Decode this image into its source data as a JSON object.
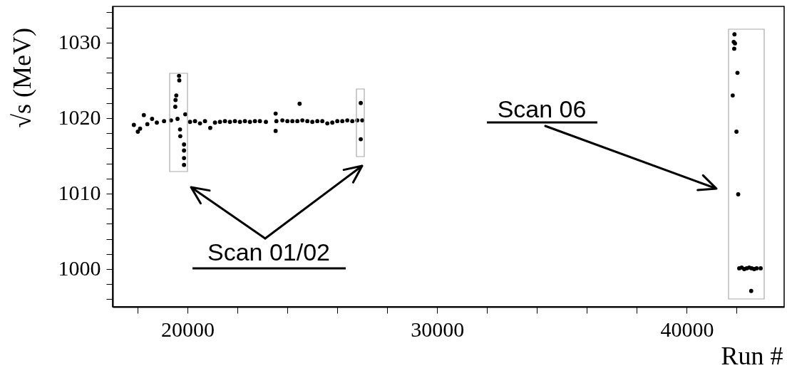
{
  "chart_data": {
    "type": "scatter",
    "xlabel": "Run #",
    "ylabel": "√s (MeV)",
    "x": [
      17850,
      18010,
      18100,
      18250,
      18390,
      18580,
      18770,
      19060,
      19340,
      19510,
      19520,
      19550,
      19660,
      19670,
      19700,
      19710,
      19860,
      19860,
      19860,
      19860,
      19600,
      19910,
      20100,
      20300,
      20500,
      20700,
      20910,
      21100,
      21300,
      21500,
      21700,
      21900,
      22100,
      22300,
      22500,
      22700,
      22900,
      23140,
      23530,
      23530,
      23560,
      23800,
      24000,
      24200,
      24490,
      24400,
      24600,
      24800,
      25000,
      25200,
      25400,
      25600,
      25800,
      26000,
      26200,
      26400,
      26600,
      26800,
      27000,
      26940,
      26940,
      41910,
      41930,
      41880,
      41900,
      42030,
      41840,
      41990,
      42060,
      42100,
      42200,
      42300,
      42400,
      42500,
      42600,
      42700,
      42800,
      42960,
      42580
    ],
    "values": [
      1019.1,
      1018.2,
      1018.6,
      1020.4,
      1019.2,
      1019.9,
      1019.4,
      1019.6,
      1019.7,
      1021.5,
      1022.4,
      1023.0,
      1025.6,
      1025.0,
      1018.5,
      1017.6,
      1016.5,
      1015.7,
      1014.7,
      1013.8,
      1019.9,
      1020.5,
      1019.5,
      1019.6,
      1019.3,
      1019.6,
      1018.7,
      1019.4,
      1019.5,
      1019.6,
      1019.5,
      1019.6,
      1019.5,
      1019.6,
      1019.5,
      1019.6,
      1019.6,
      1019.5,
      1020.6,
      1018.3,
      1019.6,
      1019.7,
      1019.6,
      1019.6,
      1021.9,
      1019.6,
      1019.7,
      1019.6,
      1019.5,
      1019.6,
      1019.6,
      1019.3,
      1019.4,
      1019.6,
      1019.6,
      1019.7,
      1019.6,
      1019.7,
      1019.7,
      1022.0,
      1017.2,
      1031.1,
      1029.9,
      1030.1,
      1029.2,
      1026.0,
      1023.0,
      1018.2,
      1009.9,
      1000.1,
      1000.2,
      1000.0,
      1000.1,
      1000.2,
      1000.1,
      1000.0,
      1000.1,
      1000.1,
      997.1
    ],
    "color": "#000000",
    "marker": "circle",
    "grid": false,
    "xlim": [
      17000,
      43900
    ],
    "xticks": [
      {
        "value": 18000,
        "label": null
      },
      20000,
      {
        "value": 22000,
        "label": null
      },
      {
        "value": 24000,
        "label": null
      },
      {
        "value": 26000,
        "label": null
      },
      {
        "value": 28000,
        "label": null
      },
      30000,
      {
        "value": 32000,
        "label": null
      },
      {
        "value": 34000,
        "label": null
      },
      {
        "value": 36000,
        "label": null
      },
      {
        "value": 38000,
        "label": null
      },
      40000,
      {
        "value": 42000,
        "label": null
      }
    ],
    "ylim": [
      995,
      1034.8
    ],
    "yticks": [
      {
        "value": 996,
        "label": null
      },
      {
        "value": 998,
        "label": null
      },
      1000,
      {
        "value": 1002,
        "label": null
      },
      {
        "value": 1004,
        "label": null
      },
      {
        "value": 1006,
        "label": null
      },
      {
        "value": 1008,
        "label": null
      },
      1010,
      {
        "value": 1012,
        "label": null
      },
      {
        "value": 1014,
        "label": null
      },
      {
        "value": 1016,
        "label": null
      },
      {
        "value": 1018,
        "label": null
      },
      1020,
      {
        "value": 1022,
        "label": null
      },
      {
        "value": 1024,
        "label": null
      },
      {
        "value": 1026,
        "label": null
      },
      {
        "value": 1028,
        "label": null
      },
      1030,
      {
        "value": 1032,
        "label": null
      },
      {
        "value": 1034,
        "label": null
      }
    ],
    "annotations": [
      "Scan 01/02",
      "Scan 06"
    ]
  }
}
